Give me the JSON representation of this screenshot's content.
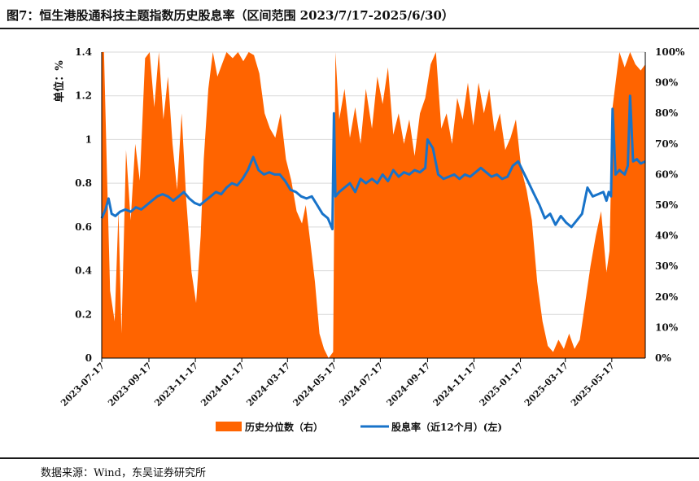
{
  "header": {
    "title": "图7：恒生港股通科技主题指数历史股息率（区间范围 2023/7/17-2025/6/30）"
  },
  "footer": {
    "source": "数据来源：Wind，东吴证券研究所"
  },
  "colors": {
    "area": "#FF6400",
    "line": "#1873C9",
    "axis": "#000000",
    "grid": "#d9d9d9"
  },
  "chart_data": {
    "type": "line+area",
    "start_date": "2023-07-17",
    "end_date": "2025-06-30",
    "ylabel_left": "单位：%",
    "y_left_range": [
      0,
      1.4
    ],
    "y_left_ticks": [
      "0",
      "0.2",
      "0.4",
      "0.6",
      "0.8",
      "1",
      "1.2",
      "1.4"
    ],
    "y_right_range": [
      0,
      100
    ],
    "y_right_ticks": [
      "0%",
      "10%",
      "20%",
      "30%",
      "40%",
      "50%",
      "60%",
      "70%",
      "80%",
      "90%",
      "100%"
    ],
    "x_ticks": [
      "2023-07-17",
      "2023-09-17",
      "2023-11-17",
      "2024-01-17",
      "2024-03-17",
      "2024-05-17",
      "2024-07-17",
      "2024-09-17",
      "2024-11-17",
      "2025-01-17",
      "2025-03-17",
      "2025-05-17"
    ],
    "legend": [
      "历史分位数（右）",
      "股息率（近12个月）(左)"
    ],
    "series": [
      {
        "name": "历史分位数（右）",
        "axis": "right",
        "type": "area",
        "points": [
          [
            "2023-07-17",
            100
          ],
          [
            "2023-07-20",
            100
          ],
          [
            "2023-07-24",
            60
          ],
          [
            "2023-07-28",
            22
          ],
          [
            "2023-08-03",
            12
          ],
          [
            "2023-08-08",
            48
          ],
          [
            "2023-08-12",
            8
          ],
          [
            "2023-08-18",
            68
          ],
          [
            "2023-08-24",
            45
          ],
          [
            "2023-08-30",
            70
          ],
          [
            "2023-09-05",
            58
          ],
          [
            "2023-09-12",
            98
          ],
          [
            "2023-09-18",
            100
          ],
          [
            "2023-09-24",
            82
          ],
          [
            "2023-09-30",
            100
          ],
          [
            "2023-10-06",
            78
          ],
          [
            "2023-10-12",
            92
          ],
          [
            "2023-10-18",
            70
          ],
          [
            "2023-10-24",
            55
          ],
          [
            "2023-10-30",
            80
          ],
          [
            "2023-11-05",
            52
          ],
          [
            "2023-11-12",
            28
          ],
          [
            "2023-11-18",
            18
          ],
          [
            "2023-11-24",
            40
          ],
          [
            "2023-11-28",
            65
          ],
          [
            "2023-12-04",
            88
          ],
          [
            "2023-12-10",
            100
          ],
          [
            "2023-12-16",
            92
          ],
          [
            "2023-12-22",
            96
          ],
          [
            "2023-12-28",
            100
          ],
          [
            "2024-01-05",
            98
          ],
          [
            "2024-01-12",
            100
          ],
          [
            "2024-01-19",
            97
          ],
          [
            "2024-01-26",
            100
          ],
          [
            "2024-02-02",
            99
          ],
          [
            "2024-02-09",
            93
          ],
          [
            "2024-02-16",
            80
          ],
          [
            "2024-02-23",
            75
          ],
          [
            "2024-03-01",
            72
          ],
          [
            "2024-03-08",
            80
          ],
          [
            "2024-03-15",
            65
          ],
          [
            "2024-03-22",
            58
          ],
          [
            "2024-03-29",
            48
          ],
          [
            "2024-04-05",
            44
          ],
          [
            "2024-04-10",
            50
          ],
          [
            "2024-04-16",
            38
          ],
          [
            "2024-04-22",
            25
          ],
          [
            "2024-04-28",
            8
          ],
          [
            "2024-05-04",
            3
          ],
          [
            "2024-05-10",
            0
          ],
          [
            "2024-05-16",
            2
          ],
          [
            "2024-05-19",
            100
          ],
          [
            "2024-05-24",
            78
          ],
          [
            "2024-05-31",
            88
          ],
          [
            "2024-06-07",
            72
          ],
          [
            "2024-06-14",
            82
          ],
          [
            "2024-06-21",
            70
          ],
          [
            "2024-06-28",
            88
          ],
          [
            "2024-07-06",
            75
          ],
          [
            "2024-07-13",
            92
          ],
          [
            "2024-07-20",
            83
          ],
          [
            "2024-07-27",
            95
          ],
          [
            "2024-08-03",
            73
          ],
          [
            "2024-08-10",
            80
          ],
          [
            "2024-08-17",
            70
          ],
          [
            "2024-08-24",
            78
          ],
          [
            "2024-08-31",
            66
          ],
          [
            "2024-09-07",
            80
          ],
          [
            "2024-09-14",
            85
          ],
          [
            "2024-09-21",
            96
          ],
          [
            "2024-09-28",
            100
          ],
          [
            "2024-10-05",
            75
          ],
          [
            "2024-10-12",
            80
          ],
          [
            "2024-10-19",
            70
          ],
          [
            "2024-10-26",
            85
          ],
          [
            "2024-11-02",
            78
          ],
          [
            "2024-11-09",
            90
          ],
          [
            "2024-11-16",
            76
          ],
          [
            "2024-11-23",
            90
          ],
          [
            "2024-11-30",
            80
          ],
          [
            "2024-12-07",
            88
          ],
          [
            "2024-12-14",
            74
          ],
          [
            "2024-12-21",
            80
          ],
          [
            "2024-12-28",
            68
          ],
          [
            "2025-01-04",
            72
          ],
          [
            "2025-01-11",
            78
          ],
          [
            "2025-01-18",
            62
          ],
          [
            "2025-01-25",
            55
          ],
          [
            "2025-02-01",
            45
          ],
          [
            "2025-02-08",
            25
          ],
          [
            "2025-02-15",
            12
          ],
          [
            "2025-02-22",
            4
          ],
          [
            "2025-03-01",
            2
          ],
          [
            "2025-03-08",
            6
          ],
          [
            "2025-03-15",
            3
          ],
          [
            "2025-03-22",
            8
          ],
          [
            "2025-03-29",
            3
          ],
          [
            "2025-04-05",
            6
          ],
          [
            "2025-04-12",
            18
          ],
          [
            "2025-04-19",
            30
          ],
          [
            "2025-04-26",
            40
          ],
          [
            "2025-05-03",
            48
          ],
          [
            "2025-05-10",
            28
          ],
          [
            "2025-05-14",
            35
          ],
          [
            "2025-05-18",
            82
          ],
          [
            "2025-05-22",
            90
          ],
          [
            "2025-05-27",
            100
          ],
          [
            "2025-06-03",
            95
          ],
          [
            "2025-06-10",
            100
          ],
          [
            "2025-06-17",
            96
          ],
          [
            "2025-06-24",
            94
          ],
          [
            "2025-06-30",
            96
          ]
        ]
      },
      {
        "name": "股息率（近12个月）(左)",
        "axis": "left",
        "type": "line",
        "points": [
          [
            "2023-07-17",
            0.64
          ],
          [
            "2023-07-22",
            0.68
          ],
          [
            "2023-07-26",
            0.73
          ],
          [
            "2023-07-30",
            0.66
          ],
          [
            "2023-08-04",
            0.65
          ],
          [
            "2023-08-10",
            0.67
          ],
          [
            "2023-08-17",
            0.68
          ],
          [
            "2023-08-24",
            0.67
          ],
          [
            "2023-08-31",
            0.69
          ],
          [
            "2023-09-07",
            0.68
          ],
          [
            "2023-09-14",
            0.7
          ],
          [
            "2023-09-21",
            0.72
          ],
          [
            "2023-09-28",
            0.74
          ],
          [
            "2023-10-05",
            0.75
          ],
          [
            "2023-10-12",
            0.74
          ],
          [
            "2023-10-19",
            0.72
          ],
          [
            "2023-10-26",
            0.74
          ],
          [
            "2023-11-02",
            0.76
          ],
          [
            "2023-11-09",
            0.73
          ],
          [
            "2023-11-16",
            0.71
          ],
          [
            "2023-11-23",
            0.7
          ],
          [
            "2023-11-30",
            0.72
          ],
          [
            "2023-12-07",
            0.74
          ],
          [
            "2023-12-14",
            0.76
          ],
          [
            "2023-12-21",
            0.75
          ],
          [
            "2023-12-28",
            0.78
          ],
          [
            "2024-01-04",
            0.8
          ],
          [
            "2024-01-11",
            0.79
          ],
          [
            "2024-01-18",
            0.82
          ],
          [
            "2024-01-25",
            0.86
          ],
          [
            "2024-02-01",
            0.92
          ],
          [
            "2024-02-08",
            0.86
          ],
          [
            "2024-02-15",
            0.84
          ],
          [
            "2024-02-22",
            0.85
          ],
          [
            "2024-02-29",
            0.84
          ],
          [
            "2024-03-07",
            0.84
          ],
          [
            "2024-03-14",
            0.81
          ],
          [
            "2024-03-21",
            0.77
          ],
          [
            "2024-03-28",
            0.76
          ],
          [
            "2024-04-04",
            0.74
          ],
          [
            "2024-04-11",
            0.73
          ],
          [
            "2024-04-18",
            0.74
          ],
          [
            "2024-04-25",
            0.7
          ],
          [
            "2024-05-02",
            0.66
          ],
          [
            "2024-05-09",
            0.64
          ],
          [
            "2024-05-15",
            0.59
          ],
          [
            "2024-05-17",
            1.12
          ],
          [
            "2024-05-19",
            0.74
          ],
          [
            "2024-05-24",
            0.76
          ],
          [
            "2024-05-31",
            0.78
          ],
          [
            "2024-06-07",
            0.8
          ],
          [
            "2024-06-14",
            0.76
          ],
          [
            "2024-06-21",
            0.82
          ],
          [
            "2024-06-28",
            0.8
          ],
          [
            "2024-07-06",
            0.82
          ],
          [
            "2024-07-13",
            0.8
          ],
          [
            "2024-07-20",
            0.84
          ],
          [
            "2024-07-27",
            0.81
          ],
          [
            "2024-08-03",
            0.86
          ],
          [
            "2024-08-10",
            0.83
          ],
          [
            "2024-08-17",
            0.85
          ],
          [
            "2024-08-24",
            0.84
          ],
          [
            "2024-08-31",
            0.86
          ],
          [
            "2024-09-07",
            0.85
          ],
          [
            "2024-09-14",
            0.87
          ],
          [
            "2024-09-17",
            1.0
          ],
          [
            "2024-09-24",
            0.96
          ],
          [
            "2024-10-01",
            0.84
          ],
          [
            "2024-10-08",
            0.82
          ],
          [
            "2024-10-15",
            0.83
          ],
          [
            "2024-10-22",
            0.84
          ],
          [
            "2024-10-29",
            0.82
          ],
          [
            "2024-11-05",
            0.84
          ],
          [
            "2024-11-12",
            0.83
          ],
          [
            "2024-11-19",
            0.85
          ],
          [
            "2024-11-26",
            0.87
          ],
          [
            "2024-12-03",
            0.85
          ],
          [
            "2024-12-10",
            0.83
          ],
          [
            "2024-12-17",
            0.84
          ],
          [
            "2024-12-24",
            0.82
          ],
          [
            "2024-12-31",
            0.83
          ],
          [
            "2025-01-07",
            0.88
          ],
          [
            "2025-01-14",
            0.9
          ],
          [
            "2025-01-21",
            0.85
          ],
          [
            "2025-01-28",
            0.8
          ],
          [
            "2025-02-04",
            0.75
          ],
          [
            "2025-02-11",
            0.7
          ],
          [
            "2025-02-18",
            0.64
          ],
          [
            "2025-02-25",
            0.66
          ],
          [
            "2025-03-04",
            0.61
          ],
          [
            "2025-03-11",
            0.65
          ],
          [
            "2025-03-18",
            0.62
          ],
          [
            "2025-03-25",
            0.6
          ],
          [
            "2025-04-01",
            0.63
          ],
          [
            "2025-04-08",
            0.66
          ],
          [
            "2025-04-15",
            0.78
          ],
          [
            "2025-04-22",
            0.74
          ],
          [
            "2025-04-29",
            0.75
          ],
          [
            "2025-05-06",
            0.76
          ],
          [
            "2025-05-10",
            0.72
          ],
          [
            "2025-05-13",
            0.76
          ],
          [
            "2025-05-16",
            0.74
          ],
          [
            "2025-05-18",
            1.14
          ],
          [
            "2025-05-22",
            0.84
          ],
          [
            "2025-05-27",
            0.86
          ],
          [
            "2025-06-03",
            0.84
          ],
          [
            "2025-06-07",
            0.88
          ],
          [
            "2025-06-10",
            1.2
          ],
          [
            "2025-06-14",
            0.9
          ],
          [
            "2025-06-19",
            0.91
          ],
          [
            "2025-06-24",
            0.89
          ],
          [
            "2025-06-30",
            0.9
          ]
        ]
      }
    ]
  }
}
